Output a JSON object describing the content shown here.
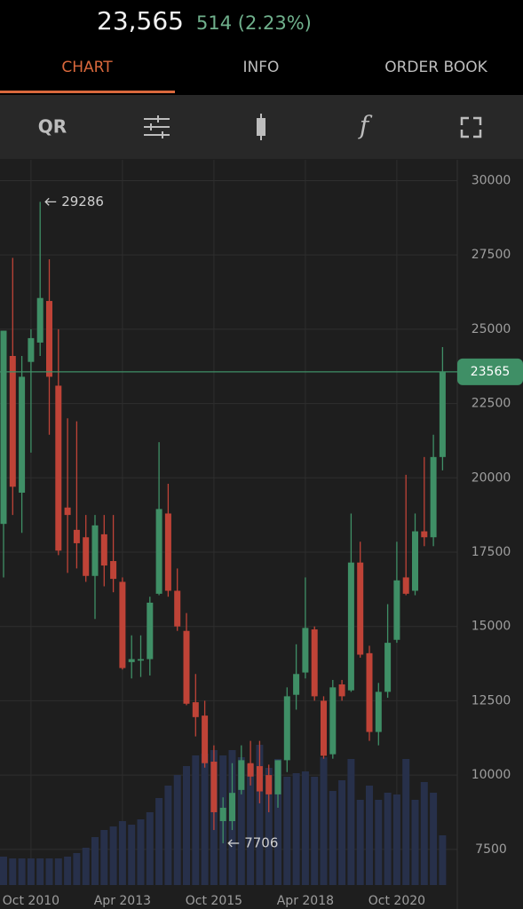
{
  "header": {
    "price": "23,565",
    "change": "514 (2.23%)"
  },
  "tabs": [
    "CHART",
    "INFO",
    "ORDER BOOK"
  ],
  "toolbar": {
    "qr": "QR",
    "function": "f"
  },
  "chart_data": {
    "type": "candlestick",
    "categories": [
      null,
      null,
      null,
      "Oct 2010",
      null,
      null,
      null,
      null,
      null,
      null,
      null,
      null,
      null,
      "Apr 2013",
      null,
      null,
      null,
      null,
      null,
      null,
      null,
      null,
      null,
      "Oct 2015",
      null,
      null,
      null,
      null,
      null,
      null,
      null,
      null,
      null,
      "Apr 2018",
      null,
      null,
      null,
      null,
      null,
      null,
      null,
      null,
      null,
      "Oct 2020",
      null,
      null,
      null,
      null,
      null
    ],
    "open": [
      18450,
      24100,
      19500,
      23900,
      24550,
      25950,
      23100,
      19000,
      18250,
      18000,
      16700,
      18100,
      17200,
      16500,
      13800,
      13850,
      13900,
      16100,
      18800,
      16200,
      14850,
      12450,
      12000,
      10450,
      8450,
      8450,
      9500,
      10400,
      10300,
      10000,
      9350,
      10500,
      12700,
      13450,
      14900,
      12500,
      10700,
      13050,
      12850,
      17150,
      14100,
      11450,
      12800,
      14550,
      16650,
      16200,
      18200,
      18000,
      20700
    ],
    "high": [
      24950,
      27400,
      24100,
      25000,
      29286,
      27350,
      25000,
      22000,
      21900,
      18750,
      18750,
      18750,
      18750,
      16650,
      14700,
      14700,
      16000,
      21200,
      19800,
      16950,
      15450,
      13400,
      12500,
      11000,
      9250,
      10400,
      11000,
      11150,
      11150,
      10350,
      10500,
      12950,
      14400,
      16650,
      15000,
      12650,
      13200,
      13200,
      18800,
      17850,
      14350,
      13100,
      15750,
      17850,
      20100,
      18800,
      20700,
      21450,
      24400
    ],
    "low": [
      16650,
      18750,
      18150,
      20850,
      24100,
      21450,
      17400,
      16800,
      16950,
      16500,
      15250,
      16350,
      16150,
      13550,
      13250,
      13300,
      13350,
      16050,
      16000,
      14850,
      12350,
      11300,
      10250,
      8150,
      7706,
      8150,
      9350,
      9650,
      9050,
      8750,
      8900,
      10100,
      12200,
      13250,
      12500,
      10550,
      10550,
      12500,
      12800,
      13950,
      11150,
      11000,
      12600,
      14450,
      16050,
      16050,
      17700,
      17700,
      20250
    ],
    "close": [
      24950,
      19700,
      23400,
      24700,
      26050,
      23400,
      17550,
      18750,
      17800,
      16700,
      18400,
      17050,
      16600,
      13600,
      13900,
      13900,
      15800,
      18950,
      16200,
      15000,
      12400,
      11950,
      10400,
      8750,
      8900,
      9400,
      10500,
      9950,
      9450,
      9350,
      10500,
      12650,
      13400,
      14950,
      12650,
      10650,
      12950,
      12650,
      17150,
      14050,
      11450,
      12800,
      14450,
      16550,
      16100,
      18200,
      18000,
      20700,
      23565
    ],
    "volume": [
      16,
      15,
      15,
      15,
      15,
      15,
      15,
      16,
      18,
      21,
      27,
      31,
      33,
      36,
      34,
      37,
      41,
      49,
      56,
      62,
      67,
      73,
      74,
      76,
      73,
      76,
      72,
      68,
      79,
      66,
      71,
      61,
      63,
      64,
      61,
      72,
      53,
      59,
      71,
      48,
      56,
      48,
      52,
      51,
      71,
      48,
      58,
      52,
      28
    ],
    "volume_lim": [
      0,
      100
    ],
    "up_color": "#3f8f66",
    "down_color": "#bf4337",
    "volume_color": "#27304a",
    "price_line_color": "#3f8f66",
    "ylim": [
      6300,
      30700
    ],
    "yticks": [
      7500,
      10000,
      12500,
      15000,
      17500,
      20000,
      22500,
      25000,
      27500,
      30000
    ],
    "grid": true
  }
}
